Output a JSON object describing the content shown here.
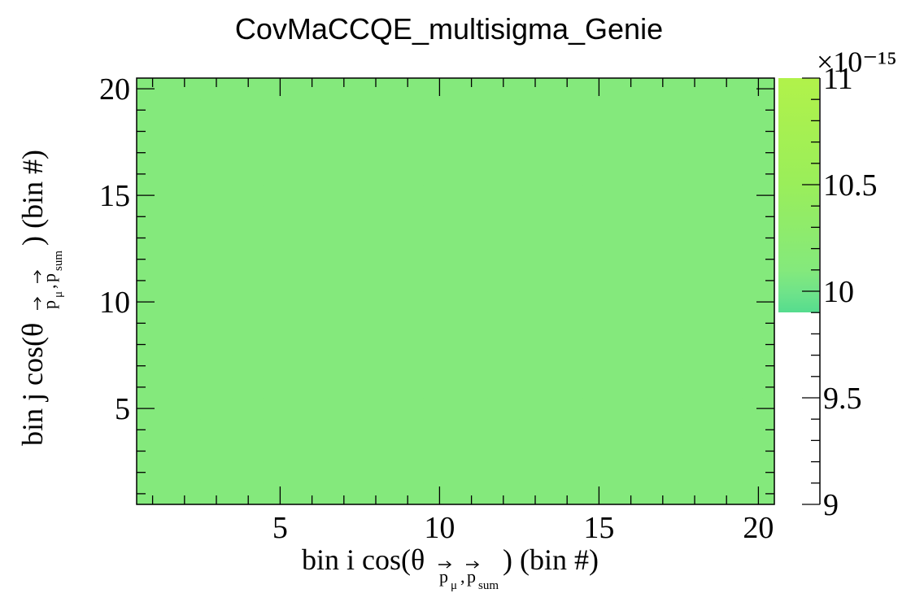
{
  "chart_data": {
    "type": "heatmap",
    "title": "CovMaCCQE_multisigma_Genie",
    "xlabel": {
      "prefix": "bin i cos(θ",
      "sub_p": "p",
      "sub_mu": "μ",
      "sub_sum": "sum",
      "suffix": ") (bin #)"
    },
    "ylabel": {
      "prefix": "bin j cos(θ",
      "sub_p": "p",
      "sub_mu": "μ",
      "sub_sum": "sum",
      "suffix": ") (bin #)"
    },
    "xlim": [
      0.5,
      20.5
    ],
    "ylim": [
      0.5,
      20.5
    ],
    "x_ticks": [
      "5",
      "10",
      "15",
      "20"
    ],
    "y_ticks": [
      "5",
      "10",
      "15",
      "20"
    ],
    "z_multiplier": "×10⁻¹⁵",
    "z_min": 9.0,
    "z_max": 11.0,
    "z_ticks": [
      "9",
      "9.5",
      "10",
      "10.5",
      "11"
    ],
    "palette_visible_range": [
      9.9,
      11.0
    ],
    "values_note_cell_fill": 10.02,
    "nx": 20,
    "ny": 20,
    "cell_value": 10.02,
    "cell_color": "#84e97c",
    "palette_colors": [
      "#55dc8e",
      "#6ee38a",
      "#84e97c",
      "#9aee5a",
      "#b1f24a"
    ]
  }
}
